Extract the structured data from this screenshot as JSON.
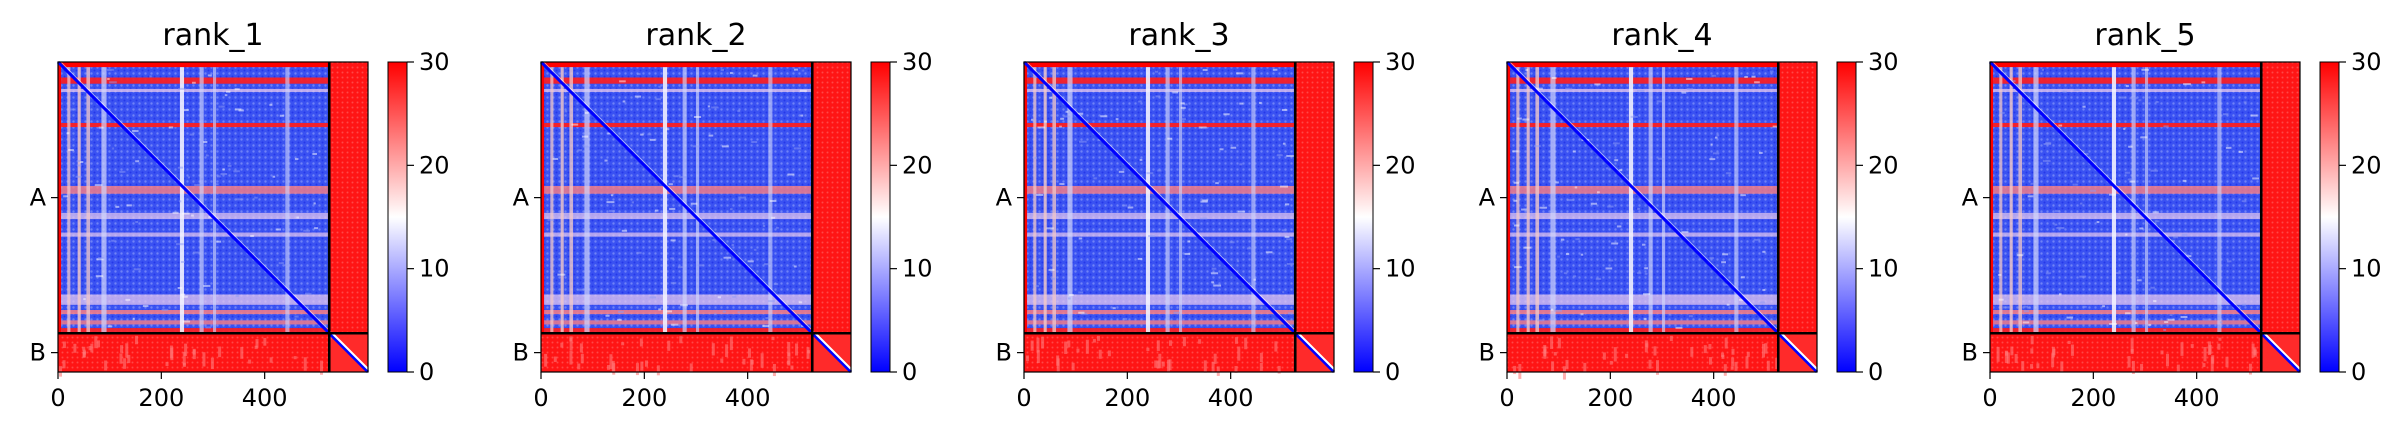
{
  "chart_data": {
    "type": "heatmap",
    "panels": [
      {
        "title": "rank_1"
      },
      {
        "title": "rank_2"
      },
      {
        "title": "rank_3"
      },
      {
        "title": "rank_4"
      },
      {
        "title": "rank_5"
      }
    ],
    "x_range": [
      0,
      600
    ],
    "x_ticks": [
      0,
      200,
      400
    ],
    "x_tick_labels": [
      "0",
      "200",
      "400"
    ],
    "chain_labels": [
      "A",
      "B"
    ],
    "chain_boundary": 525,
    "chain_A_length": 525,
    "total_length": 600,
    "colorbar": {
      "range": [
        0,
        30
      ],
      "ticks": [
        0,
        10,
        20,
        30
      ],
      "tick_labels": [
        "0",
        "10",
        "20",
        "30"
      ],
      "colormap": [
        "#0000ff",
        "#ffffff",
        "#ff0000"
      ]
    },
    "grid": false
  }
}
